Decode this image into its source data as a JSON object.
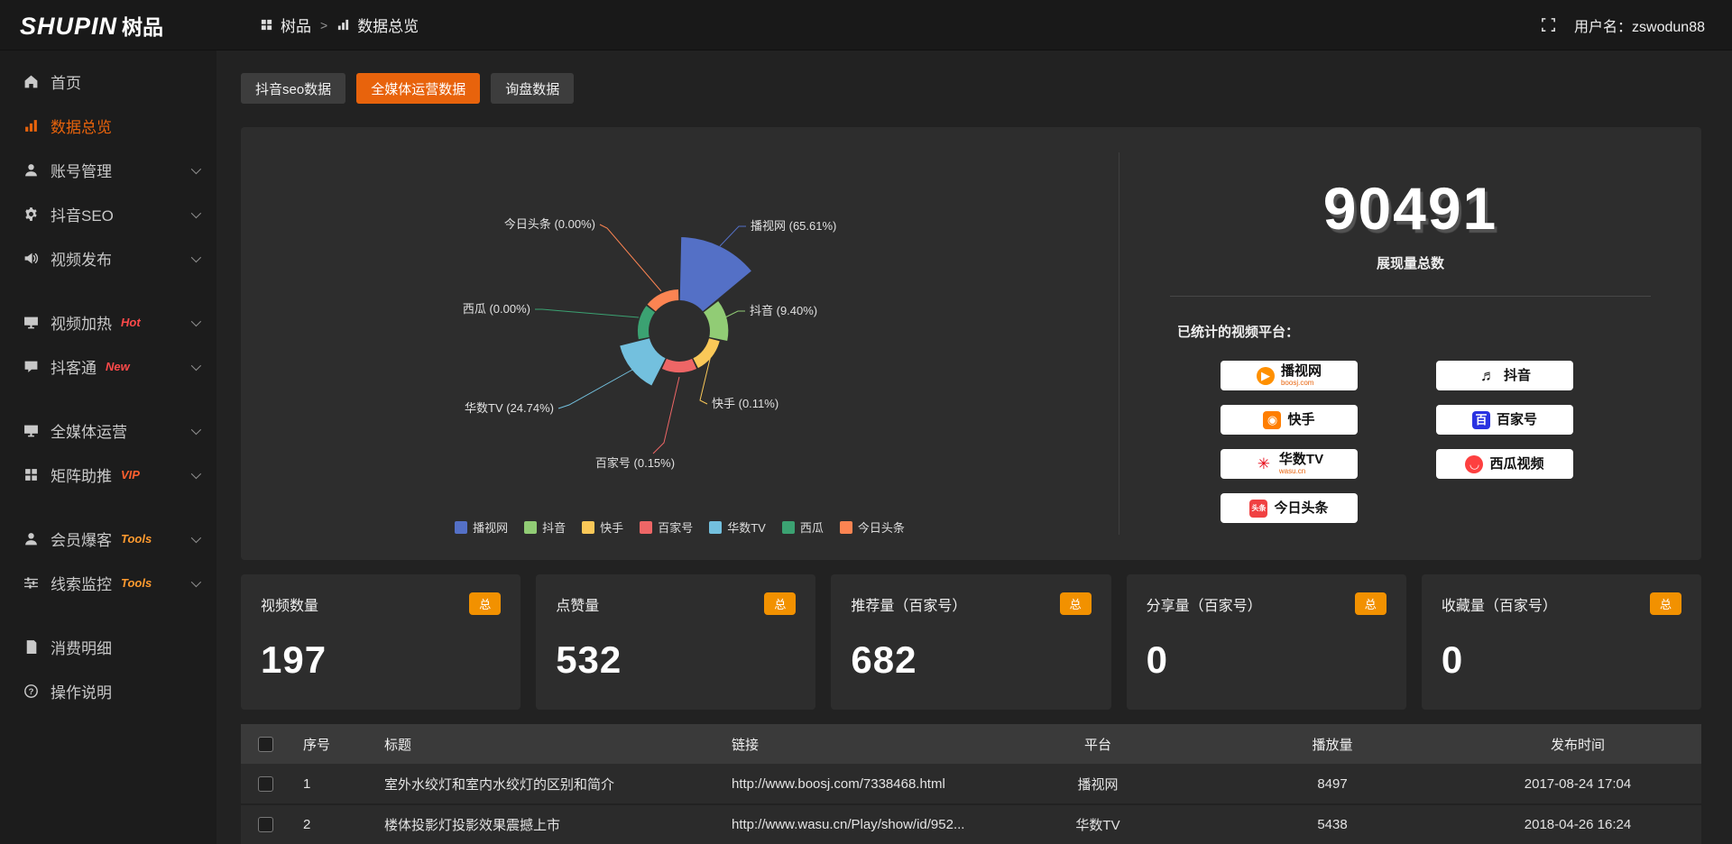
{
  "topbar": {
    "logo_main": "SHUPIN",
    "logo_cn": "树品",
    "breadcrumb_root": "树品",
    "breadcrumb_sep": ">",
    "breadcrumb_current": "数据总览",
    "user_label": "用户名：zswodun88"
  },
  "sidebar": {
    "items": [
      {
        "key": "home",
        "label": "首页",
        "icon": "home"
      },
      {
        "key": "data-overview",
        "label": "数据总览",
        "icon": "chart",
        "active": true
      },
      {
        "key": "account-management",
        "label": "账号管理",
        "icon": "user",
        "chevron": true
      },
      {
        "key": "douyin-seo",
        "label": "抖音SEO",
        "icon": "gear",
        "chevron": true
      },
      {
        "key": "video-publish",
        "label": "视频发布",
        "icon": "speaker",
        "chevron": true,
        "gap_after": true
      },
      {
        "key": "video-heating",
        "label": "视频加热",
        "icon": "monitor",
        "tag": "Hot",
        "tag_color": "#ff4a4a",
        "chevron": true
      },
      {
        "key": "douketong",
        "label": "抖客通",
        "icon": "chat",
        "tag": "New",
        "tag_color": "#ff4a4a",
        "chevron": true,
        "gap_after": true
      },
      {
        "key": "media-operation",
        "label": "全媒体运营",
        "icon": "monitor",
        "chevron": true
      },
      {
        "key": "matrix-boost",
        "label": "矩阵助推",
        "icon": "grid",
        "tag": "VIP",
        "tag_color": "#ff5f2e",
        "chevron": true,
        "gap_after": true
      },
      {
        "key": "member-burst",
        "label": "会员爆客",
        "icon": "user",
        "tag": "Tools",
        "tag_color": "#ff9a2f",
        "chevron": true
      },
      {
        "key": "clue-monitor",
        "label": "线索监控",
        "icon": "sliders",
        "tag": "Tools",
        "tag_color": "#ff9a2f",
        "chevron": true,
        "gap_after": true
      },
      {
        "key": "consumption-detail",
        "label": "消费明细",
        "icon": "doc"
      },
      {
        "key": "operation-guide",
        "label": "操作说明",
        "icon": "question"
      }
    ]
  },
  "tabs": [
    {
      "key": "douyin-seo-data",
      "label": "抖音seo数据",
      "active": false
    },
    {
      "key": "media-operation-data",
      "label": "全媒体运营数据",
      "active": true
    },
    {
      "key": "inquiry-data",
      "label": "询盘数据",
      "active": false
    }
  ],
  "chart_data": {
    "type": "pie",
    "variant": "nightingale-rose",
    "unit": "%",
    "series": [
      {
        "name": "播视网",
        "value": 65.61,
        "color": "#5470c6"
      },
      {
        "name": "抖音",
        "value": 9.4,
        "color": "#91cc75"
      },
      {
        "name": "快手",
        "value": 0.11,
        "color": "#fac858"
      },
      {
        "name": "百家号",
        "value": 0.15,
        "color": "#ee6666"
      },
      {
        "name": "华数TV",
        "value": 24.74,
        "color": "#73c0de"
      },
      {
        "name": "西瓜",
        "value": 0.0,
        "color": "#3ba272"
      },
      {
        "name": "今日头条",
        "value": 0.0,
        "color": "#fc8452"
      }
    ],
    "legend": [
      "播视网",
      "抖音",
      "快手",
      "百家号",
      "华数TV",
      "西瓜",
      "今日头条"
    ],
    "legend_position": "bottom"
  },
  "overview": {
    "total_value": "90491",
    "total_label": "展现量总数",
    "platforms_label": "已统计的视频平台：",
    "platforms": [
      {
        "name": "播视网",
        "sub": "boosj.com",
        "glyph": "▶",
        "bg": "#ff9000",
        "shape": "circle"
      },
      {
        "name": "抖音",
        "glyph": "♬",
        "glyph_color": "#111111",
        "shape": "none"
      },
      {
        "name": "快手",
        "glyph": "◉",
        "bg": "#ff7e00",
        "shape": "square"
      },
      {
        "name": "百家号",
        "glyph": "百",
        "bg": "#2932e1",
        "shape": "square"
      },
      {
        "name": "华数TV",
        "sub": "wasu.cn",
        "glyph": "✳",
        "glyph_color": "#e60012",
        "shape": "none"
      },
      {
        "name": "西瓜视频",
        "glyph": "◡",
        "bg": "#fd4040",
        "shape": "circle"
      },
      {
        "name": "今日头条",
        "glyph": "头条",
        "bg": "#f04142",
        "shape": "square"
      }
    ]
  },
  "stat_cards": [
    {
      "title": "视频数量",
      "badge": "总",
      "value": "197"
    },
    {
      "title": "点赞量",
      "badge": "总",
      "value": "532"
    },
    {
      "title": "推荐量（百家号）",
      "badge": "总",
      "value": "682"
    },
    {
      "title": "分享量（百家号）",
      "badge": "总",
      "value": "0"
    },
    {
      "title": "收藏量（百家号）",
      "badge": "总",
      "value": "0"
    }
  ],
  "table": {
    "columns": [
      "序号",
      "标题",
      "链接",
      "平台",
      "播放量",
      "发布时间"
    ],
    "rows": [
      {
        "no": "1",
        "title": "室外水绞灯和室内水绞灯的区别和简介",
        "link": "http://www.boosj.com/7338468.html",
        "platform": "播视网",
        "plays": "8497",
        "time": "2017-08-24 17:04"
      },
      {
        "no": "2",
        "title": "楼体投影灯投影效果震撼上市",
        "link": "http://www.wasu.cn/Play/show/id/952...",
        "platform": "华数TV",
        "plays": "5438",
        "time": "2018-04-26 16:24"
      }
    ]
  },
  "colors": {
    "accent": "#e8630c",
    "badge_orange": "#f29100",
    "link_text": "#e8953f"
  }
}
